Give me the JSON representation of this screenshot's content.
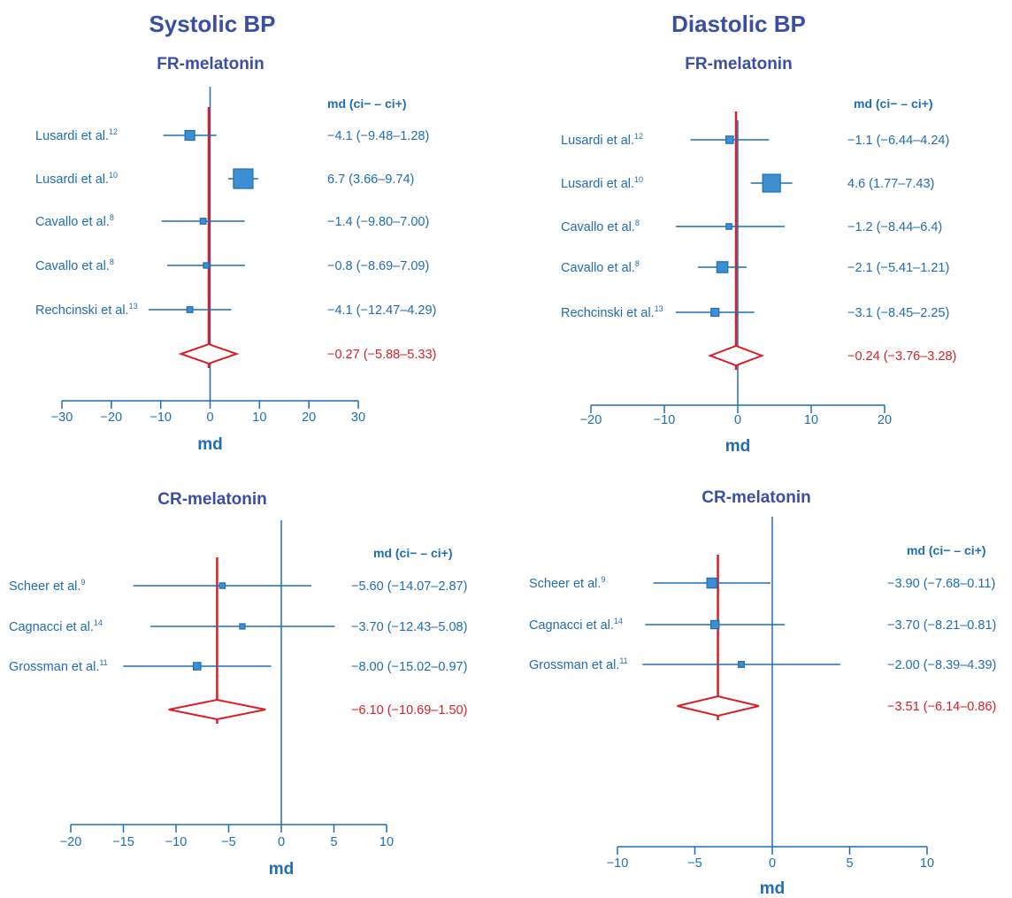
{
  "colors": {
    "title": "#3a4ea3",
    "blue": "#1f6db5",
    "marker_fill": "#3c8fd0",
    "red": "#d81f26"
  },
  "columns": {
    "left": "Systolic BP",
    "right": "Diastolic BP"
  },
  "chart_data": [
    {
      "type": "forest",
      "title": "FR-melatonin",
      "group": "Systolic BP",
      "xlabel": "md",
      "header": "md (ci− – ci+)",
      "ticks": [
        "−30",
        "−20",
        "−10",
        "0",
        "10",
        "20",
        "30"
      ],
      "tick_values": [
        -30,
        -20,
        -10,
        0,
        10,
        20,
        30
      ],
      "xlim": [
        -30,
        30
      ],
      "studies": [
        {
          "label": "Lusardi et al.",
          "ref": "12",
          "md": -4.1,
          "lo": -9.48,
          "hi": 1.28,
          "weight": 0.5,
          "text": "−4.1 (−9.48–1.28)"
        },
        {
          "label": "Lusardi et al.",
          "ref": "10",
          "md": 6.7,
          "lo": 3.66,
          "hi": 9.74,
          "weight": 1.0,
          "text": "6.7 (3.66–9.74)"
        },
        {
          "label": "Cavallo et al.",
          "ref": "8",
          "md": -1.4,
          "lo": -9.8,
          "hi": 7.0,
          "weight": 0.3,
          "text": "−1.4 (−9.80–7.00)"
        },
        {
          "label": "Cavallo et al.",
          "ref": "8",
          "md": -0.8,
          "lo": -8.69,
          "hi": 7.09,
          "weight": 0.28,
          "text": "−0.8 (−8.69–7.09)"
        },
        {
          "label": "Rechcinski et al.",
          "ref": "13",
          "md": -4.1,
          "lo": -12.47,
          "hi": 4.29,
          "weight": 0.3,
          "text": "−4.1 (−12.47–4.29)"
        }
      ],
      "pooled": {
        "md": -0.27,
        "lo": -5.88,
        "hi": 5.33,
        "text": "−0.27 (−5.88–5.33)"
      }
    },
    {
      "type": "forest",
      "title": "FR-melatonin",
      "group": "Diastolic BP",
      "xlabel": "md",
      "header": "md (ci− – ci+)",
      "ticks": [
        "−20",
        "−10",
        "0",
        "10",
        "20"
      ],
      "tick_values": [
        -20,
        -10,
        0,
        10,
        20
      ],
      "xlim": [
        -20,
        20
      ],
      "studies": [
        {
          "label": "Lusardi et al.",
          "ref": "12",
          "md": -1.1,
          "lo": -6.44,
          "hi": 4.24,
          "weight": 0.42,
          "text": "−1.1 (−6.44–4.24)"
        },
        {
          "label": "Lusardi et al.",
          "ref": "10",
          "md": 4.6,
          "lo": 1.77,
          "hi": 7.43,
          "weight": 1.0,
          "text": "4.6 (1.77–7.43)"
        },
        {
          "label": "Cavallo et al.",
          "ref": "8",
          "md": -1.2,
          "lo": -8.44,
          "hi": 6.4,
          "weight": 0.32,
          "text": "−1.2 (−8.44–6.4)"
        },
        {
          "label": "Cavallo et al.",
          "ref": "8",
          "md": -2.1,
          "lo": -5.41,
          "hi": 1.21,
          "weight": 0.62,
          "text": "−2.1 (−5.41–1.21)"
        },
        {
          "label": "Rechcinski et al.",
          "ref": "13",
          "md": -3.1,
          "lo": -8.45,
          "hi": 2.25,
          "weight": 0.45,
          "text": "−3.1 (−8.45–2.25)"
        }
      ],
      "pooled": {
        "md": -0.24,
        "lo": -3.76,
        "hi": 3.28,
        "text": "−0.24 (−3.76–3.28)"
      }
    },
    {
      "type": "forest",
      "title": "CR-melatonin",
      "group": "Systolic BP",
      "xlabel": "md",
      "header": "md (ci− – ci+)",
      "ticks": [
        "−20",
        "−15",
        "−10",
        "−5",
        "0",
        "5",
        "10"
      ],
      "tick_values": [
        -20,
        -15,
        -10,
        -5,
        0,
        5,
        10
      ],
      "xlim": [
        -20,
        10
      ],
      "studies": [
        {
          "label": "Scheer et al.",
          "ref": "9",
          "md": -5.6,
          "lo": -14.07,
          "hi": 2.87,
          "weight": 0.45,
          "text": "−5.60 (−14.07–2.87)"
        },
        {
          "label": "Cagnacci et al.",
          "ref": "14",
          "md": -3.7,
          "lo": -12.43,
          "hi": 5.08,
          "weight": 0.42,
          "text": "−3.70 (−12.43–5.08)"
        },
        {
          "label": "Grossman et al.",
          "ref": "11",
          "md": -8.0,
          "lo": -15.02,
          "hi": -0.97,
          "weight": 0.6,
          "text": "−8.00 (−15.02–0.97)"
        }
      ],
      "pooled": {
        "md": -6.1,
        "lo": -10.69,
        "hi": -1.5,
        "text": "−6.10 (−10.69–1.50)"
      }
    },
    {
      "type": "forest",
      "title": "CR-melatonin",
      "group": "Diastolic BP",
      "xlabel": "md",
      "header": "md (ci− – ci+)",
      "ticks": [
        "−10",
        "−5",
        "0",
        "5",
        "10"
      ],
      "tick_values": [
        -10,
        -5,
        0,
        5,
        10
      ],
      "xlim": [
        -10,
        10
      ],
      "studies": [
        {
          "label": "Scheer et al.",
          "ref": "9",
          "md": -3.9,
          "lo": -7.68,
          "hi": -0.11,
          "weight": 0.7,
          "text": "−3.90 (−7.68–0.11)"
        },
        {
          "label": "Cagnacci et al.",
          "ref": "14",
          "md": -3.7,
          "lo": -8.21,
          "hi": 0.81,
          "weight": 0.58,
          "text": "−3.70 (−8.21–0.81)"
        },
        {
          "label": "Grossman et al.",
          "ref": "11",
          "md": -2.0,
          "lo": -8.39,
          "hi": 4.39,
          "weight": 0.42,
          "text": "−2.00 (−8.39–4.39)"
        }
      ],
      "pooled": {
        "md": -3.51,
        "lo": -6.14,
        "hi": -0.86,
        "text": "−3.51 (−6.14–0.86)"
      }
    }
  ]
}
